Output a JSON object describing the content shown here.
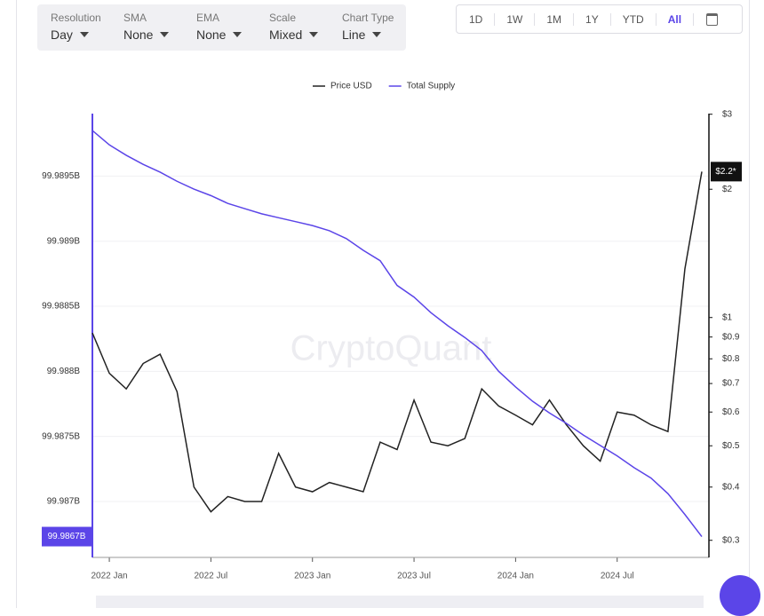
{
  "toolbar": {
    "selectors": [
      {
        "label": "Resolution",
        "value": "Day"
      },
      {
        "label": "SMA",
        "value": "None"
      },
      {
        "label": "EMA",
        "value": "None"
      },
      {
        "label": "Scale",
        "value": "Mixed"
      },
      {
        "label": "Chart Type",
        "value": "Line"
      }
    ],
    "ranges": [
      "1D",
      "1W",
      "1M",
      "1Y",
      "YTD",
      "All"
    ],
    "active_range": "All"
  },
  "chart_data": {
    "type": "line",
    "watermark": "CryptoQuant",
    "grid": true,
    "y2_log": true,
    "x": [
      "2021-12",
      "2022-01",
      "2022-02",
      "2022-03",
      "2022-04",
      "2022-05",
      "2022-06",
      "2022-07",
      "2022-08",
      "2022-09",
      "2022-10",
      "2022-11",
      "2022-12",
      "2023-01",
      "2023-02",
      "2023-03",
      "2023-04",
      "2023-05",
      "2023-06",
      "2023-07",
      "2023-08",
      "2023-09",
      "2023-10",
      "2023-11",
      "2023-12",
      "2024-01",
      "2024-02",
      "2024-03",
      "2024-04",
      "2024-05",
      "2024-06",
      "2024-07",
      "2024-08",
      "2024-09",
      "2024-10",
      "2024-11",
      "2024-12"
    ],
    "xlim": [
      "2021-12",
      "2024-12"
    ],
    "xticks": [
      {
        "value": "2022-01",
        "label": "2022 Jan"
      },
      {
        "value": "2022-07",
        "label": "2022 Jul"
      },
      {
        "value": "2023-01",
        "label": "2023 Jan"
      },
      {
        "value": "2023-07",
        "label": "2023 Jul"
      },
      {
        "value": "2024-01",
        "label": "2024 Jan"
      },
      {
        "value": "2024-07",
        "label": "2024 Jul"
      }
    ],
    "ylim": [
      99.98657,
      99.98998
    ],
    "yticks": [
      {
        "value": 99.987,
        "label": "99.987B"
      },
      {
        "value": 99.9875,
        "label": "99.9875B"
      },
      {
        "value": 99.988,
        "label": "99.988B"
      },
      {
        "value": 99.9885,
        "label": "99.9885B"
      },
      {
        "value": 99.989,
        "label": "99.989B"
      },
      {
        "value": 99.9895,
        "label": "99.9895B"
      }
    ],
    "y2lim": [
      0.2735,
      3.01
    ],
    "y2ticks": [
      {
        "value": 0.3,
        "label": "$0.3"
      },
      {
        "value": 0.4,
        "label": "$0.4"
      },
      {
        "value": 0.5,
        "label": "$0.5"
      },
      {
        "value": 0.6,
        "label": "$0.6"
      },
      {
        "value": 0.7,
        "label": "$0.7"
      },
      {
        "value": 0.8,
        "label": "$0.8"
      },
      {
        "value": 0.9,
        "label": "$0.9"
      },
      {
        "value": 1,
        "label": "$1"
      },
      {
        "value": 2,
        "label": "$2"
      },
      {
        "value": 3,
        "label": "$3"
      }
    ],
    "series": [
      {
        "name": "Price USD",
        "color": "#222222",
        "axis": "y2",
        "last_label": "$2.2*",
        "values": [
          0.92,
          0.74,
          0.68,
          0.78,
          0.82,
          0.67,
          0.4,
          0.35,
          0.38,
          0.37,
          0.37,
          0.48,
          0.4,
          0.39,
          0.41,
          0.4,
          0.39,
          0.51,
          0.49,
          0.64,
          0.51,
          0.5,
          0.52,
          0.68,
          0.62,
          0.59,
          0.56,
          0.64,
          0.56,
          0.5,
          0.46,
          0.6,
          0.59,
          0.56,
          0.54,
          1.3,
          2.2
        ]
      },
      {
        "name": "Total Supply",
        "color": "#5b45e8",
        "last_label": "99.9867B",
        "values": [
          99.98985,
          99.98974,
          99.98966,
          99.98959,
          99.98953,
          99.98946,
          99.9894,
          99.98935,
          99.98929,
          99.98925,
          99.98921,
          99.98918,
          99.98915,
          99.98912,
          99.98908,
          99.98902,
          99.98893,
          99.98885,
          99.98866,
          99.98857,
          99.98845,
          99.98835,
          99.98826,
          99.98816,
          99.988,
          99.98788,
          99.98777,
          99.98768,
          99.9876,
          99.98751,
          99.98743,
          99.98735,
          99.98726,
          99.98718,
          99.98706,
          99.9869,
          99.98673
        ]
      }
    ]
  }
}
